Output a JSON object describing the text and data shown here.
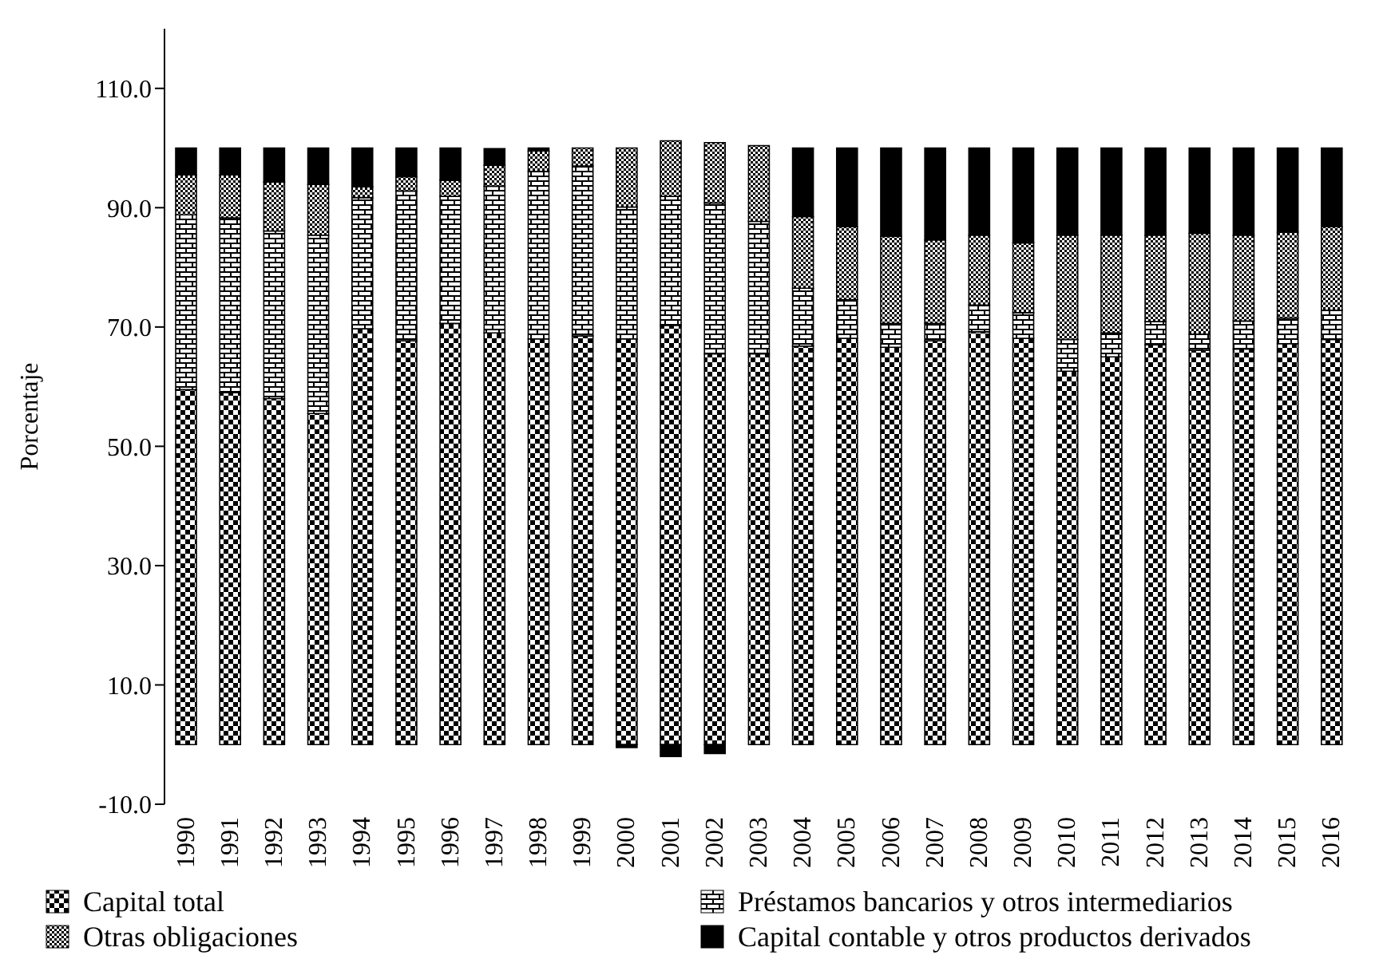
{
  "chart_data": {
    "type": "bar",
    "stacked": true,
    "ylabel": "Porcentaje",
    "categories": [
      "1990",
      "1991",
      "1992",
      "1993",
      "1994",
      "1995",
      "1996",
      "1997",
      "1998",
      "1999",
      "2000",
      "2001",
      "2002",
      "2003",
      "2004",
      "2005",
      "2006",
      "2007",
      "2008",
      "2009",
      "2010",
      "2011",
      "2012",
      "2013",
      "2014",
      "2015",
      "2016"
    ],
    "series": [
      {
        "name": "Capital total",
        "color": "#000000",
        "values": [
          59.5,
          59,
          58,
          55.5,
          69.7,
          67.7,
          70.6,
          69,
          68,
          68.5,
          68,
          70.3,
          65.5,
          65.5,
          66.8,
          68.1,
          66.6,
          67.7,
          69.2,
          68.1,
          62.6,
          65,
          67,
          66.1,
          66.3,
          67.2,
          67.9
        ]
      },
      {
        "name": "Préstamos bancarios y otros intermediarios",
        "color": "#000000",
        "values": [
          29.3,
          29.3,
          28.1,
          29.9,
          22,
          25.1,
          21.3,
          24.6,
          28.1,
          28.5,
          22.1,
          21.6,
          25.3,
          22.2,
          9.7,
          6.5,
          4,
          2.9,
          4.5,
          4.3,
          5.3,
          4,
          3.9,
          2.7,
          4.7,
          4.3,
          4.9
        ]
      },
      {
        "name": "Otras obligaciones",
        "color": "#000000",
        "values": [
          6.7,
          7.2,
          8.2,
          8.5,
          1.8,
          2.4,
          2.7,
          3.5,
          3.4,
          3,
          9.9,
          9.3,
          10.1,
          12.7,
          12,
          12.2,
          14.6,
          14,
          11.7,
          11.7,
          17.5,
          16.4,
          14.5,
          16.9,
          14.4,
          14.4,
          14
        ]
      },
      {
        "name": "Capital contable y otros productos derivados",
        "color": "#000000",
        "values": [
          4.5,
          4.5,
          5.7,
          6.1,
          6.5,
          4.8,
          5.4,
          2.8,
          0.5,
          0,
          -0.5,
          -2,
          -1.5,
          0,
          11.5,
          13.2,
          14.8,
          15.4,
          14.6,
          15.9,
          14.6,
          14.6,
          14.6,
          14.3,
          14.6,
          14.1,
          13.2
        ]
      }
    ],
    "ylim": [
      -10,
      120
    ],
    "yticks": [
      {
        "value": -10,
        "label": "-10.0"
      },
      {
        "value": 10,
        "label": "10.0"
      },
      {
        "value": 30,
        "label": "30.0"
      },
      {
        "value": 50,
        "label": "50.0"
      },
      {
        "value": 70,
        "label": "70.0"
      },
      {
        "value": 90,
        "label": "90.0"
      },
      {
        "value": 110,
        "label": "110.0"
      }
    ],
    "grid": false,
    "legend": "bottom"
  }
}
